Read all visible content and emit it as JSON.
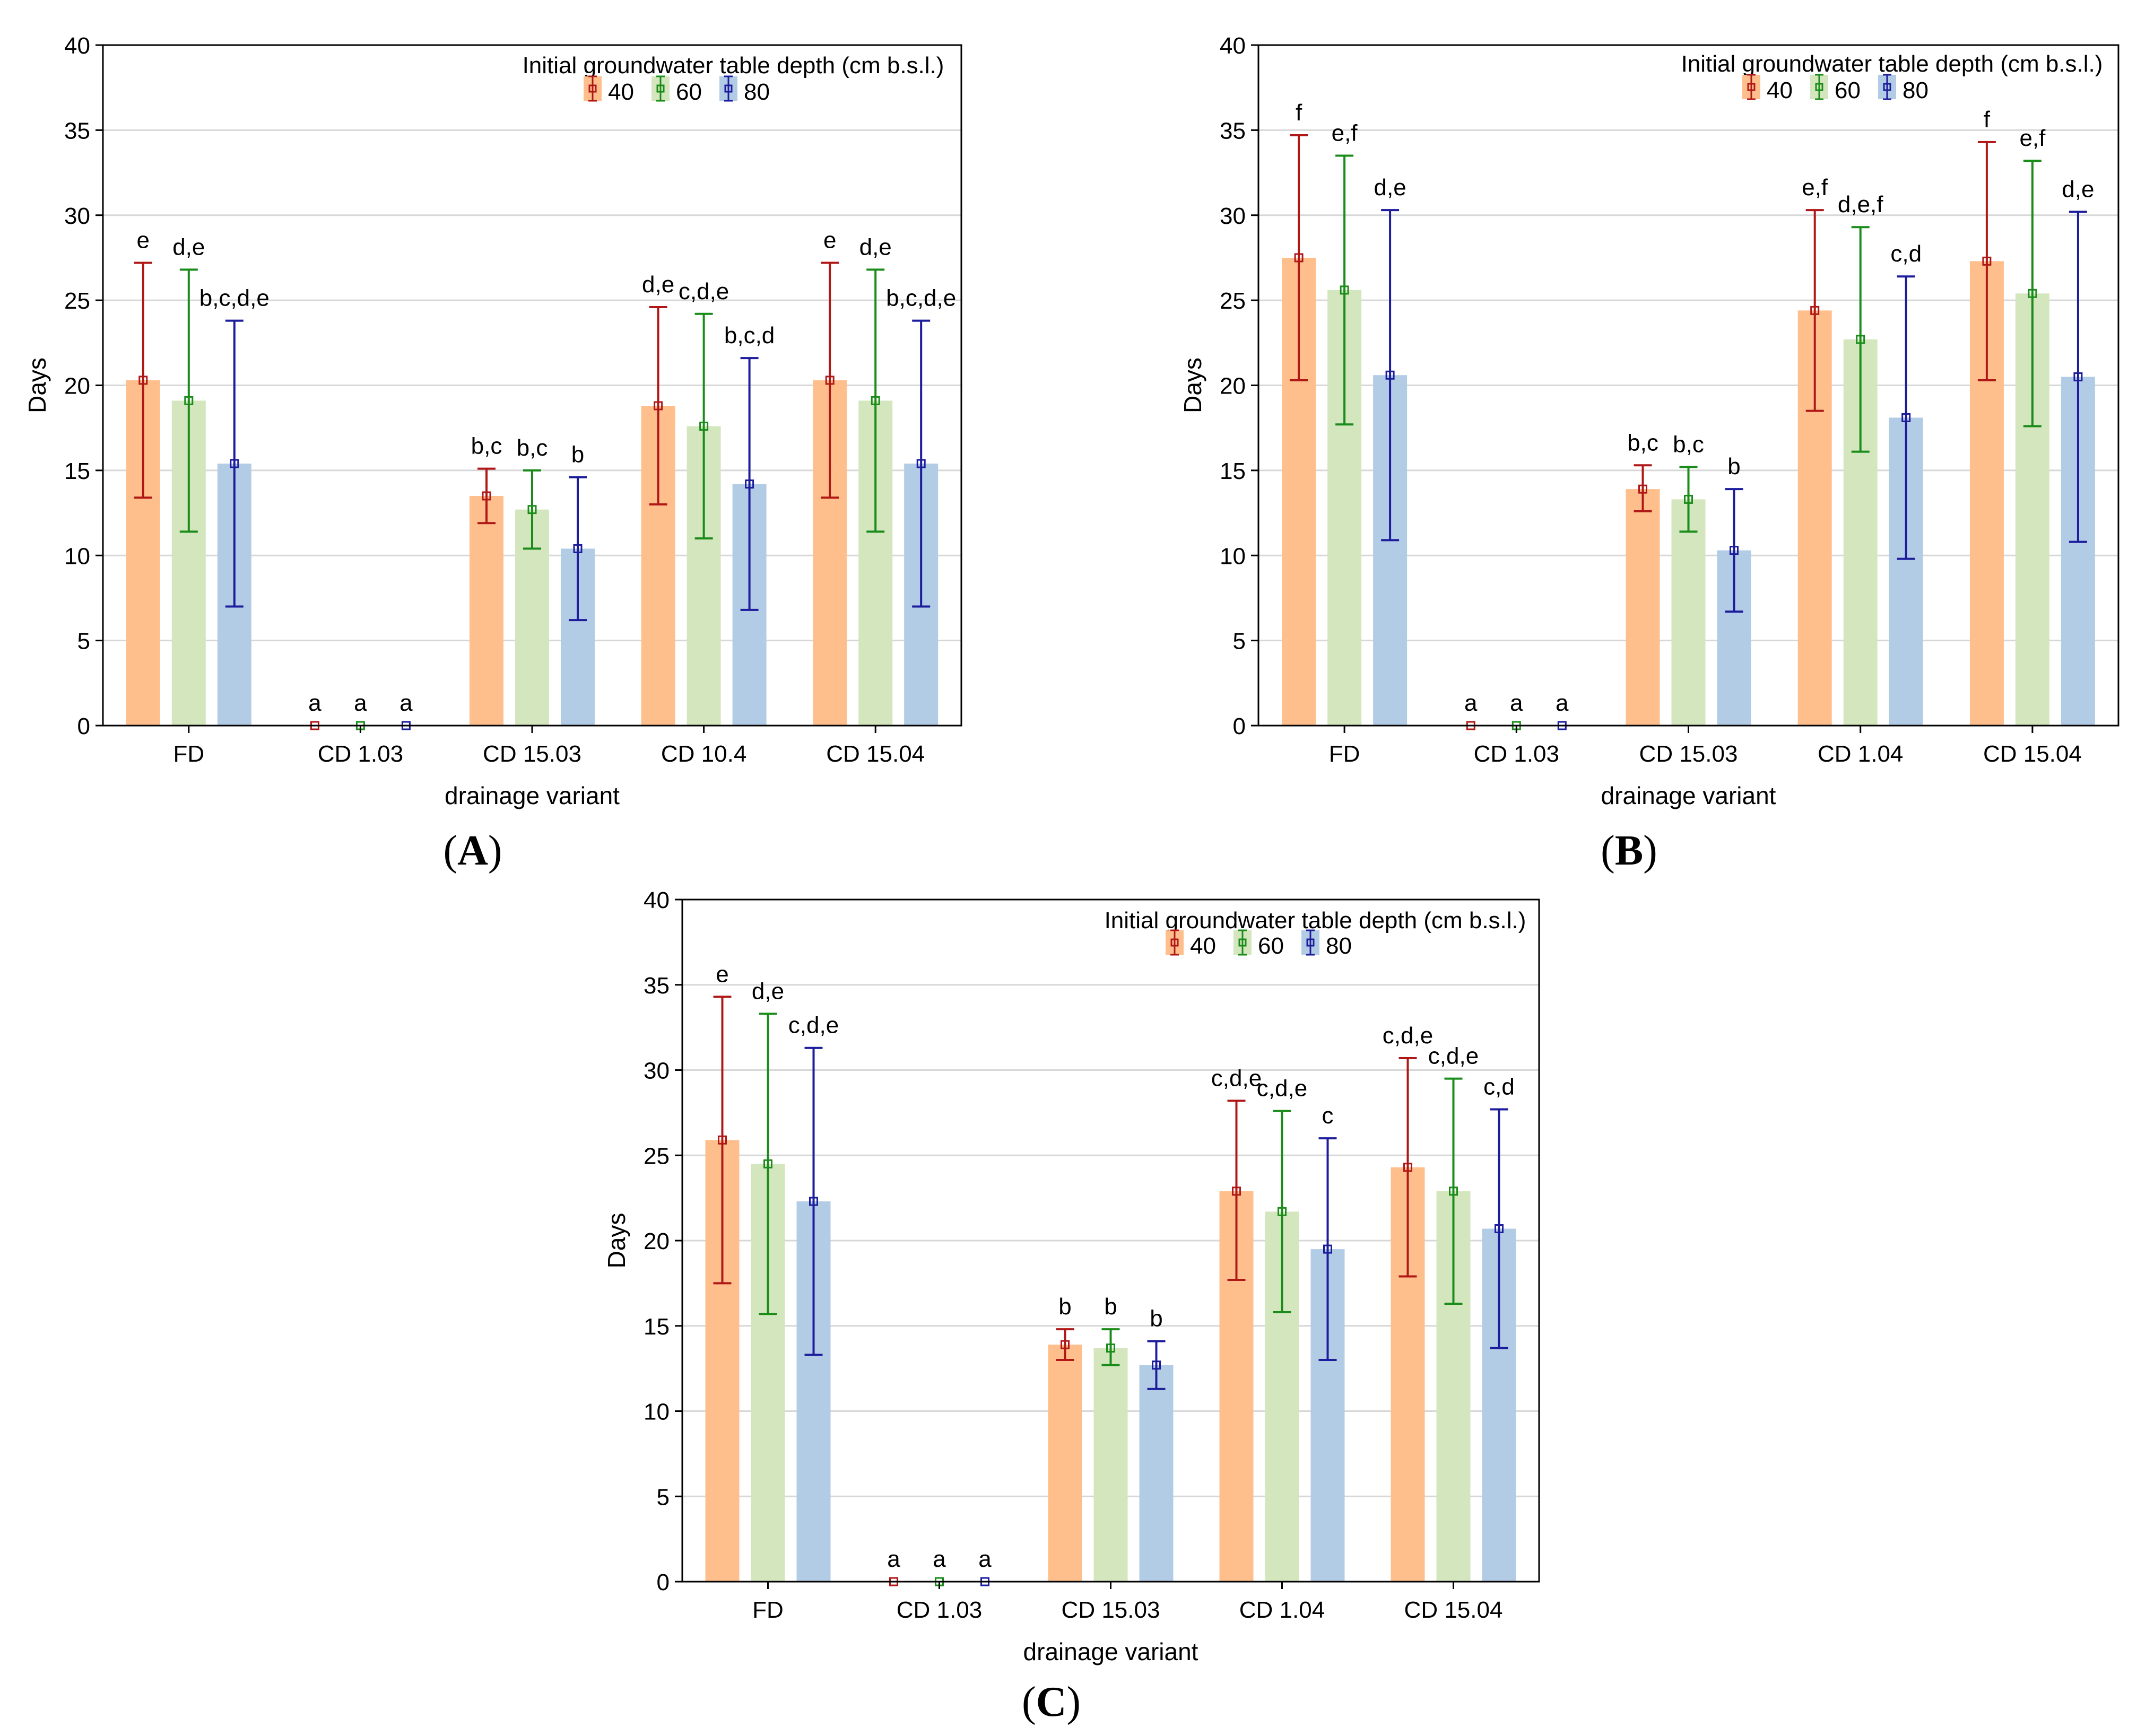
{
  "colors": {
    "fill": [
      "#ffbf8c",
      "#d4e6bd",
      "#b3cce6"
    ],
    "line": [
      "#b01818",
      "#1a8c1a",
      "#1c1c9c"
    ],
    "grid": "#d7d7d7"
  },
  "chart_data": [
    {
      "type": "bar",
      "panel": "(A)",
      "panel_label": {
        "open": "(",
        "letter": "A",
        "close": ")"
      },
      "xlabel": "drainage variant",
      "ylabel": "Days",
      "ylim": [
        0,
        40
      ],
      "yticks": [
        "0",
        "5",
        "10",
        "15",
        "20",
        "25",
        "30",
        "35",
        "40"
      ],
      "grid": true,
      "legend": {
        "position": "top-right",
        "title": "Initial groundwater table depth (cm b.s.l.)"
      },
      "categories": [
        "FD",
        "CD 1.03",
        "CD 15.03",
        "CD 10.4",
        "CD 15.04"
      ],
      "series": [
        {
          "name": "40",
          "values": [
            20.3,
            0,
            13.5,
            18.8,
            20.3
          ],
          "err_low": [
            13.4,
            0,
            11.9,
            13.0,
            13.4
          ],
          "err_high": [
            27.2,
            0,
            15.1,
            24.6,
            27.2
          ],
          "labels": [
            "e",
            "a",
            "b,c",
            "d,e",
            "e"
          ]
        },
        {
          "name": "60",
          "values": [
            19.1,
            0,
            12.7,
            17.6,
            19.1
          ],
          "err_low": [
            11.4,
            0,
            10.4,
            11.0,
            11.4
          ],
          "err_high": [
            26.8,
            0,
            15.0,
            24.2,
            26.8
          ],
          "labels": [
            "d,e",
            "a",
            "b,c",
            "c,d,e",
            "d,e"
          ]
        },
        {
          "name": "80",
          "values": [
            15.4,
            0,
            10.4,
            14.2,
            15.4
          ],
          "err_low": [
            7.0,
            0,
            6.2,
            6.8,
            7.0
          ],
          "err_high": [
            23.8,
            0,
            14.6,
            21.6,
            23.8
          ],
          "labels": [
            "b,c,d,e",
            "a",
            "b",
            "b,c,d",
            "b,c,d,e"
          ]
        }
      ]
    },
    {
      "type": "bar",
      "panel": "(B)",
      "panel_label": {
        "open": "(",
        "letter": "B",
        "close": ")"
      },
      "xlabel": "drainage variant",
      "ylabel": "Days",
      "ylim": [
        0,
        40
      ],
      "yticks": [
        "0",
        "5",
        "10",
        "15",
        "20",
        "25",
        "30",
        "35",
        "40"
      ],
      "grid": true,
      "legend": {
        "position": "top-right",
        "title": "Initial groundwater table depth (cm b.s.l.)"
      },
      "categories": [
        "FD",
        "CD 1.03",
        "CD 15.03",
        "CD 1.04",
        "CD 15.04"
      ],
      "series": [
        {
          "name": "40",
          "values": [
            27.5,
            0,
            13.9,
            24.4,
            27.3
          ],
          "err_low": [
            20.3,
            0,
            12.6,
            18.5,
            20.3
          ],
          "err_high": [
            34.7,
            0,
            15.3,
            30.3,
            34.3
          ],
          "labels": [
            "f",
            "a",
            "b,c",
            "e,f",
            "f"
          ]
        },
        {
          "name": "60",
          "values": [
            25.6,
            0,
            13.3,
            22.7,
            25.4
          ],
          "err_low": [
            17.7,
            0,
            11.4,
            16.1,
            17.6
          ],
          "err_high": [
            33.5,
            0,
            15.2,
            29.3,
            33.2
          ],
          "labels": [
            "e,f",
            "a",
            "b,c",
            "d,e,f",
            "e,f"
          ]
        },
        {
          "name": "80",
          "values": [
            20.6,
            0,
            10.3,
            18.1,
            20.5
          ],
          "err_low": [
            10.9,
            0,
            6.7,
            9.8,
            10.8
          ],
          "err_high": [
            30.3,
            0,
            13.9,
            26.4,
            30.2
          ],
          "labels": [
            "d,e",
            "a",
            "b",
            "c,d",
            "d,e"
          ]
        }
      ]
    },
    {
      "type": "bar",
      "panel": "(C)",
      "panel_label": {
        "open": "(",
        "letter": "C",
        "close": ")"
      },
      "xlabel": "drainage variant",
      "ylabel": "Days",
      "ylim": [
        0,
        40
      ],
      "yticks": [
        "0",
        "5",
        "10",
        "15",
        "20",
        "25",
        "30",
        "35",
        "40"
      ],
      "grid": true,
      "legend": {
        "position": "top-right",
        "title": "Initial groundwater table depth (cm b.s.l.)"
      },
      "categories": [
        "FD",
        "CD 1.03",
        "CD 15.03",
        "CD 1.04",
        "CD 15.04"
      ],
      "series": [
        {
          "name": "40",
          "values": [
            25.9,
            0,
            13.9,
            22.9,
            24.3
          ],
          "err_low": [
            17.5,
            0,
            13.0,
            17.7,
            17.9
          ],
          "err_high": [
            34.3,
            0,
            14.8,
            28.2,
            30.7
          ],
          "labels": [
            "e",
            "a",
            "b",
            "c,d,e",
            "c,d,e"
          ]
        },
        {
          "name": "60",
          "values": [
            24.5,
            0,
            13.7,
            21.7,
            22.9
          ],
          "err_low": [
            15.7,
            0,
            12.7,
            15.8,
            16.3
          ],
          "err_high": [
            33.3,
            0,
            14.8,
            27.6,
            29.5
          ],
          "labels": [
            "d,e",
            "a",
            "b",
            "c,d,e",
            "c,d,e"
          ]
        },
        {
          "name": "80",
          "values": [
            22.3,
            0,
            12.7,
            19.5,
            20.7
          ],
          "err_low": [
            13.3,
            0,
            11.3,
            13.0,
            13.7
          ],
          "err_high": [
            31.3,
            0,
            14.1,
            26.0,
            27.7
          ],
          "labels": [
            "c,d,e",
            "a",
            "b",
            "c",
            "c,d"
          ]
        }
      ]
    }
  ]
}
